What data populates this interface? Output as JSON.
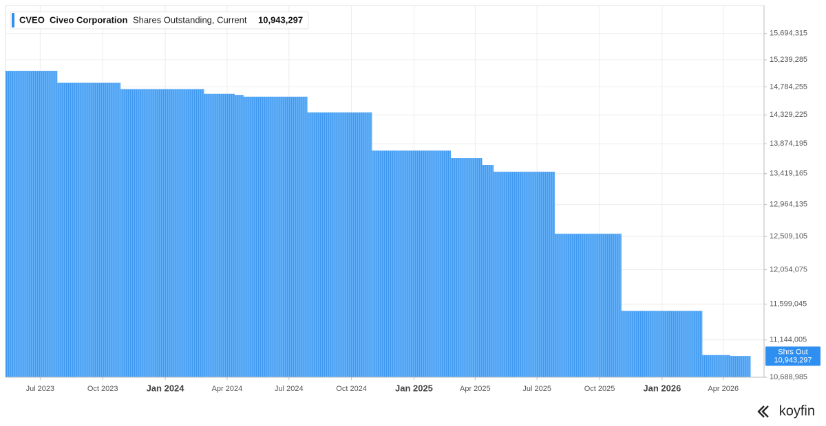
{
  "chart_data": {
    "type": "step",
    "legend": {
      "ticker": "CVEO",
      "name": "Civeo Corporation",
      "metric": "Shares Outstanding, Current",
      "value": "10,943,297"
    },
    "last_tag": {
      "label": "Shrs Out",
      "value": "10,943,297"
    },
    "logo": "koyfin",
    "color": "#5fadf6",
    "log_scale": true,
    "grid": true,
    "xlim": [
      "2023-05-11",
      "2026-05-31"
    ],
    "xticks": [
      {
        "value": "2023-07-01",
        "label": "Jul 2023"
      },
      {
        "value": "2023-10-01",
        "label": "Oct 2023"
      },
      {
        "value": "2024-01-01",
        "label": "Jan 2024"
      },
      {
        "value": "2024-04-01",
        "label": "Apr 2024"
      },
      {
        "value": "2024-07-01",
        "label": "Jul 2024"
      },
      {
        "value": "2024-10-01",
        "label": "Oct 2024"
      },
      {
        "value": "2025-01-01",
        "label": "Jan 2025"
      },
      {
        "value": "2025-04-01",
        "label": "Apr 2025"
      },
      {
        "value": "2025-07-01",
        "label": "Jul 2025"
      },
      {
        "value": "2025-10-01",
        "label": "Oct 2025"
      },
      {
        "value": "2026-01-01",
        "label": "Jan 2026"
      },
      {
        "value": "2026-04-01",
        "label": "Apr 2026"
      }
    ],
    "ylim": [
      10688985,
      16192500
    ],
    "yticks": [
      {
        "value": 10688985,
        "label": "10,688,985"
      },
      {
        "value": 11144005,
        "label": "11,144,005"
      },
      {
        "value": 11599045,
        "label": "11,599,045"
      },
      {
        "value": 12054075,
        "label": "12,054,075"
      },
      {
        "value": 12509105,
        "label": "12,509,105"
      },
      {
        "value": 12964135,
        "label": "12,964,135"
      },
      {
        "value": 13419165,
        "label": "13,419,165"
      },
      {
        "value": 13874195,
        "label": "13,874,195"
      },
      {
        "value": 14329225,
        "label": "14,329,225"
      },
      {
        "value": 14784255,
        "label": "14,784,255"
      },
      {
        "value": 15239285,
        "label": "15,239,285"
      },
      {
        "value": 15694315,
        "label": "15,694,315"
      }
    ],
    "x": [
      "2023-05-11",
      "2023-07-26",
      "2023-10-27",
      "2024-02-27",
      "2024-04-12",
      "2024-04-25",
      "2024-07-28",
      "2024-10-31",
      "2025-02-24",
      "2025-04-11",
      "2025-04-28",
      "2025-07-27",
      "2025-11-02",
      "2026-03-01",
      "2026-04-11",
      "2026-05-11"
    ],
    "values": [
      15050000,
      14850000,
      14745000,
      14667000,
      14650000,
      14621000,
      14367000,
      13767000,
      13652000,
      13548000,
      13446000,
      12545000,
      11509000,
      10955000,
      10943297,
      10943297
    ]
  }
}
